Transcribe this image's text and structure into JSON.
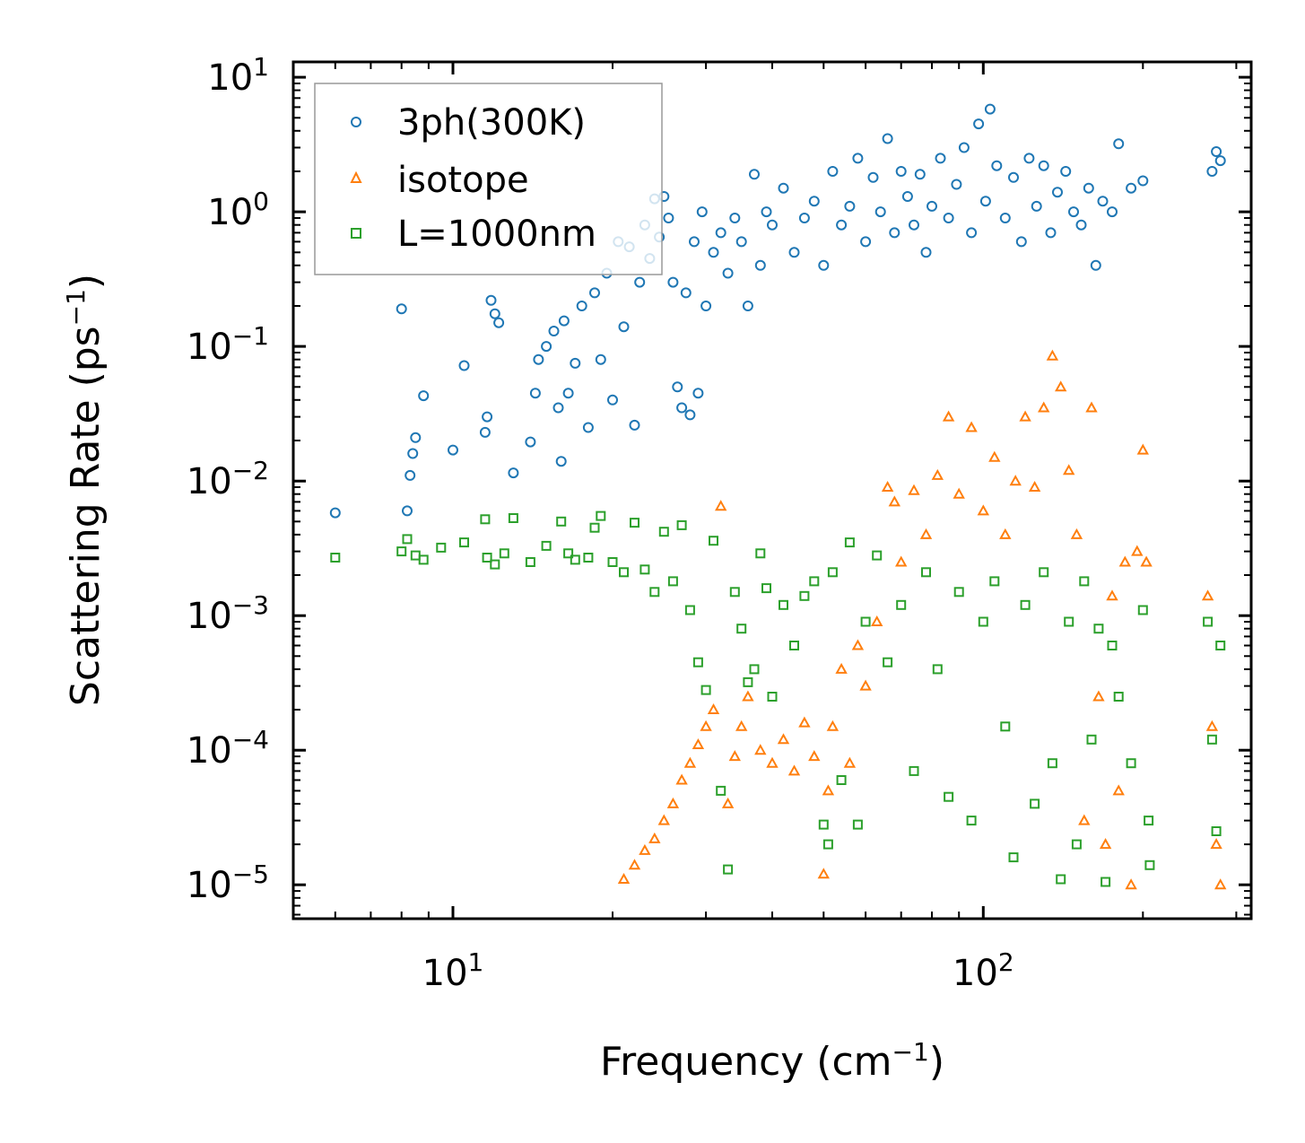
{
  "chart_data": {
    "type": "scatter",
    "title": "",
    "xlabel": "Frequency (cm⁻¹)",
    "ylabel": "Scattering Rate (ps⁻¹)",
    "xlabel_base": "Frequency (cm",
    "ylabel_base": "Scattering Rate (ps",
    "label_exp": "−1",
    "label_close": ")",
    "xscale": "log",
    "yscale": "log",
    "xlim": [
      5,
      320
    ],
    "ylim": [
      5.6e-06,
      13
    ],
    "x_ticks": [
      {
        "value": 10,
        "base": "10",
        "exp": "1"
      },
      {
        "value": 100,
        "base": "10",
        "exp": "2"
      }
    ],
    "y_ticks": [
      {
        "value": 10,
        "base": "10",
        "exp": "1"
      },
      {
        "value": 1,
        "base": "10",
        "exp": "0"
      },
      {
        "value": 0.1,
        "base": "10",
        "exp": "−1"
      },
      {
        "value": 0.01,
        "base": "10",
        "exp": "−2"
      },
      {
        "value": 0.001,
        "base": "10",
        "exp": "−3"
      },
      {
        "value": 0.0001,
        "base": "10",
        "exp": "−4"
      },
      {
        "value": 1e-05,
        "base": "10",
        "exp": "−5"
      }
    ],
    "grid": false,
    "legend_position": "top-left",
    "series": [
      {
        "name": "3ph(300K)",
        "marker": "circle",
        "color": "#1f77b4",
        "points": [
          [
            6,
            0.0058
          ],
          [
            8,
            0.19
          ],
          [
            8.2,
            0.006
          ],
          [
            8.3,
            0.011
          ],
          [
            8.4,
            0.016
          ],
          [
            8.5,
            0.021
          ],
          [
            8.8,
            0.043
          ],
          [
            10,
            0.017
          ],
          [
            10.5,
            0.072
          ],
          [
            11.5,
            0.023
          ],
          [
            11.6,
            0.03
          ],
          [
            11.8,
            0.22
          ],
          [
            12,
            0.175
          ],
          [
            12.2,
            0.15
          ],
          [
            13,
            0.0115
          ],
          [
            14,
            0.0195
          ],
          [
            14.3,
            0.045
          ],
          [
            14.5,
            0.08
          ],
          [
            15,
            0.1
          ],
          [
            15.5,
            0.13
          ],
          [
            15.8,
            0.035
          ],
          [
            16,
            0.014
          ],
          [
            16.2,
            0.155
          ],
          [
            16.5,
            0.045
          ],
          [
            17,
            0.075
          ],
          [
            17.5,
            0.2
          ],
          [
            18,
            0.025
          ],
          [
            18.5,
            0.25
          ],
          [
            19,
            0.08
          ],
          [
            19.5,
            0.35
          ],
          [
            20,
            0.04
          ],
          [
            20.5,
            0.6
          ],
          [
            21,
            0.14
          ],
          [
            21.5,
            0.55
          ],
          [
            22,
            0.026
          ],
          [
            22.5,
            0.3
          ],
          [
            23,
            0.8
          ],
          [
            23.5,
            0.45
          ],
          [
            24,
            1.25
          ],
          [
            24.5,
            0.65
          ],
          [
            25,
            1.3
          ],
          [
            25.5,
            0.9
          ],
          [
            26,
            0.3
          ],
          [
            26.5,
            0.05
          ],
          [
            27,
            0.035
          ],
          [
            27.5,
            0.25
          ],
          [
            28,
            0.031
          ],
          [
            28.5,
            0.6
          ],
          [
            29,
            0.045
          ],
          [
            29.5,
            1.0
          ],
          [
            30,
            0.2
          ],
          [
            31,
            0.5
          ],
          [
            32,
            0.7
          ],
          [
            33,
            0.35
          ],
          [
            34,
            0.9
          ],
          [
            35,
            0.6
          ],
          [
            36,
            0.2
          ],
          [
            37,
            1.9
          ],
          [
            38,
            0.4
          ],
          [
            39,
            1.0
          ],
          [
            40,
            0.8
          ],
          [
            42,
            1.5
          ],
          [
            44,
            0.5
          ],
          [
            46,
            0.9
          ],
          [
            48,
            1.2
          ],
          [
            50,
            0.4
          ],
          [
            52,
            2.0
          ],
          [
            54,
            0.8
          ],
          [
            56,
            1.1
          ],
          [
            58,
            2.5
          ],
          [
            60,
            0.6
          ],
          [
            62,
            1.8
          ],
          [
            64,
            1.0
          ],
          [
            66,
            3.5
          ],
          [
            68,
            0.7
          ],
          [
            70,
            2.0
          ],
          [
            72,
            1.3
          ],
          [
            74,
            0.8
          ],
          [
            76,
            1.9
          ],
          [
            78,
            0.5
          ],
          [
            80,
            1.1
          ],
          [
            83,
            2.5
          ],
          [
            86,
            0.9
          ],
          [
            89,
            1.6
          ],
          [
            92,
            3.0
          ],
          [
            95,
            0.7
          ],
          [
            98,
            4.5
          ],
          [
            101,
            1.2
          ],
          [
            103,
            5.8
          ],
          [
            106,
            2.2
          ],
          [
            110,
            0.9
          ],
          [
            114,
            1.8
          ],
          [
            118,
            0.6
          ],
          [
            122,
            2.5
          ],
          [
            126,
            1.1
          ],
          [
            130,
            2.2
          ],
          [
            134,
            0.7
          ],
          [
            138,
            1.4
          ],
          [
            143,
            2.0
          ],
          [
            148,
            1.0
          ],
          [
            153,
            0.8
          ],
          [
            158,
            1.5
          ],
          [
            163,
            0.4
          ],
          [
            168,
            1.2
          ],
          [
            175,
            1.0
          ],
          [
            180,
            3.2
          ],
          [
            190,
            1.5
          ],
          [
            200,
            1.7
          ],
          [
            270,
            2.0
          ],
          [
            275,
            2.8
          ],
          [
            280,
            2.4
          ]
        ]
      },
      {
        "name": "isotope",
        "marker": "triangle",
        "color": "#ff7f0e",
        "points": [
          [
            21,
            1.1e-05
          ],
          [
            22,
            1.4e-05
          ],
          [
            23,
            1.8e-05
          ],
          [
            24,
            2.2e-05
          ],
          [
            25,
            3e-05
          ],
          [
            26,
            4e-05
          ],
          [
            27,
            6e-05
          ],
          [
            28,
            8e-05
          ],
          [
            29,
            0.00011
          ],
          [
            30,
            0.00015
          ],
          [
            31,
            0.0002
          ],
          [
            32,
            0.0065
          ],
          [
            33,
            4e-05
          ],
          [
            34,
            9e-05
          ],
          [
            35,
            0.00015
          ],
          [
            36,
            0.00025
          ],
          [
            38,
            0.0001
          ],
          [
            40,
            8e-05
          ],
          [
            42,
            0.00012
          ],
          [
            44,
            7e-05
          ],
          [
            46,
            0.00016
          ],
          [
            48,
            9e-05
          ],
          [
            50,
            1.2e-05
          ],
          [
            51,
            5e-05
          ],
          [
            52,
            0.00015
          ],
          [
            54,
            0.0004
          ],
          [
            56,
            8e-05
          ],
          [
            58,
            0.0006
          ],
          [
            60,
            0.0003
          ],
          [
            63,
            0.0009
          ],
          [
            66,
            0.009
          ],
          [
            68,
            0.007
          ],
          [
            70,
            0.0025
          ],
          [
            74,
            0.0085
          ],
          [
            78,
            0.004
          ],
          [
            82,
            0.011
          ],
          [
            86,
            0.03
          ],
          [
            90,
            0.008
          ],
          [
            95,
            0.025
          ],
          [
            100,
            0.006
          ],
          [
            105,
            0.015
          ],
          [
            110,
            0.004
          ],
          [
            115,
            0.01
          ],
          [
            120,
            0.03
          ],
          [
            125,
            0.009
          ],
          [
            130,
            0.035
          ],
          [
            135,
            0.085
          ],
          [
            140,
            0.05
          ],
          [
            145,
            0.012
          ],
          [
            150,
            0.004
          ],
          [
            155,
            3e-05
          ],
          [
            160,
            0.035
          ],
          [
            165,
            0.00025
          ],
          [
            170,
            2e-05
          ],
          [
            175,
            0.0014
          ],
          [
            180,
            5e-05
          ],
          [
            185,
            0.0025
          ],
          [
            190,
            1e-05
          ],
          [
            195,
            0.003
          ],
          [
            200,
            0.017
          ],
          [
            203,
            0.0025
          ],
          [
            265,
            0.0014
          ],
          [
            270,
            0.00015
          ],
          [
            275,
            2e-05
          ],
          [
            280,
            1e-05
          ]
        ]
      },
      {
        "name": "L=1000nm",
        "marker": "square",
        "color": "#2ca02c",
        "points": [
          [
            6,
            0.0027
          ],
          [
            8,
            0.003
          ],
          [
            8.2,
            0.0037
          ],
          [
            8.5,
            0.0028
          ],
          [
            8.8,
            0.0026
          ],
          [
            9.5,
            0.0032
          ],
          [
            10.5,
            0.0035
          ],
          [
            11.5,
            0.0052
          ],
          [
            11.6,
            0.0027
          ],
          [
            12,
            0.0024
          ],
          [
            12.5,
            0.0029
          ],
          [
            13,
            0.0053
          ],
          [
            14,
            0.0025
          ],
          [
            15,
            0.0033
          ],
          [
            16,
            0.005
          ],
          [
            16.5,
            0.0029
          ],
          [
            17,
            0.0026
          ],
          [
            18,
            0.0027
          ],
          [
            18.5,
            0.0045
          ],
          [
            19,
            0.0055
          ],
          [
            20,
            0.0025
          ],
          [
            21,
            0.0021
          ],
          [
            22,
            0.0049
          ],
          [
            23,
            0.0022
          ],
          [
            24,
            0.0015
          ],
          [
            25,
            0.0042
          ],
          [
            26,
            0.0018
          ],
          [
            27,
            0.0047
          ],
          [
            28,
            0.0011
          ],
          [
            29,
            0.00045
          ],
          [
            30,
            0.00028
          ],
          [
            31,
            0.0036
          ],
          [
            32,
            5e-05
          ],
          [
            33,
            1.3e-05
          ],
          [
            34,
            0.0015
          ],
          [
            35,
            0.0008
          ],
          [
            36,
            0.00032
          ],
          [
            37,
            0.0004
          ],
          [
            38,
            0.0029
          ],
          [
            39,
            0.0016
          ],
          [
            40,
            0.00025
          ],
          [
            42,
            0.0012
          ],
          [
            44,
            0.0006
          ],
          [
            46,
            0.0014
          ],
          [
            48,
            0.0018
          ],
          [
            50,
            2.8e-05
          ],
          [
            51,
            2e-05
          ],
          [
            52,
            0.0021
          ],
          [
            54,
            6e-05
          ],
          [
            56,
            0.0035
          ],
          [
            58,
            2.8e-05
          ],
          [
            60,
            0.0009
          ],
          [
            63,
            0.0028
          ],
          [
            66,
            0.00045
          ],
          [
            70,
            0.0012
          ],
          [
            74,
            7e-05
          ],
          [
            78,
            0.0021
          ],
          [
            82,
            0.0004
          ],
          [
            86,
            4.5e-05
          ],
          [
            90,
            0.0015
          ],
          [
            95,
            3e-05
          ],
          [
            100,
            0.0009
          ],
          [
            105,
            0.0018
          ],
          [
            110,
            0.00015
          ],
          [
            114,
            1.6e-05
          ],
          [
            120,
            0.0012
          ],
          [
            125,
            4e-05
          ],
          [
            130,
            0.0021
          ],
          [
            135,
            8e-05
          ],
          [
            140,
            1.1e-05
          ],
          [
            145,
            0.0009
          ],
          [
            150,
            2e-05
          ],
          [
            155,
            0.0018
          ],
          [
            160,
            0.00012
          ],
          [
            165,
            0.0008
          ],
          [
            170,
            1.05e-05
          ],
          [
            175,
            0.0006
          ],
          [
            180,
            0.00025
          ],
          [
            190,
            8e-05
          ],
          [
            200,
            0.0011
          ],
          [
            205,
            3e-05
          ],
          [
            206,
            1.4e-05
          ],
          [
            265,
            0.0009
          ],
          [
            270,
            0.00012
          ],
          [
            275,
            2.5e-05
          ],
          [
            280,
            0.0006
          ]
        ]
      }
    ]
  }
}
